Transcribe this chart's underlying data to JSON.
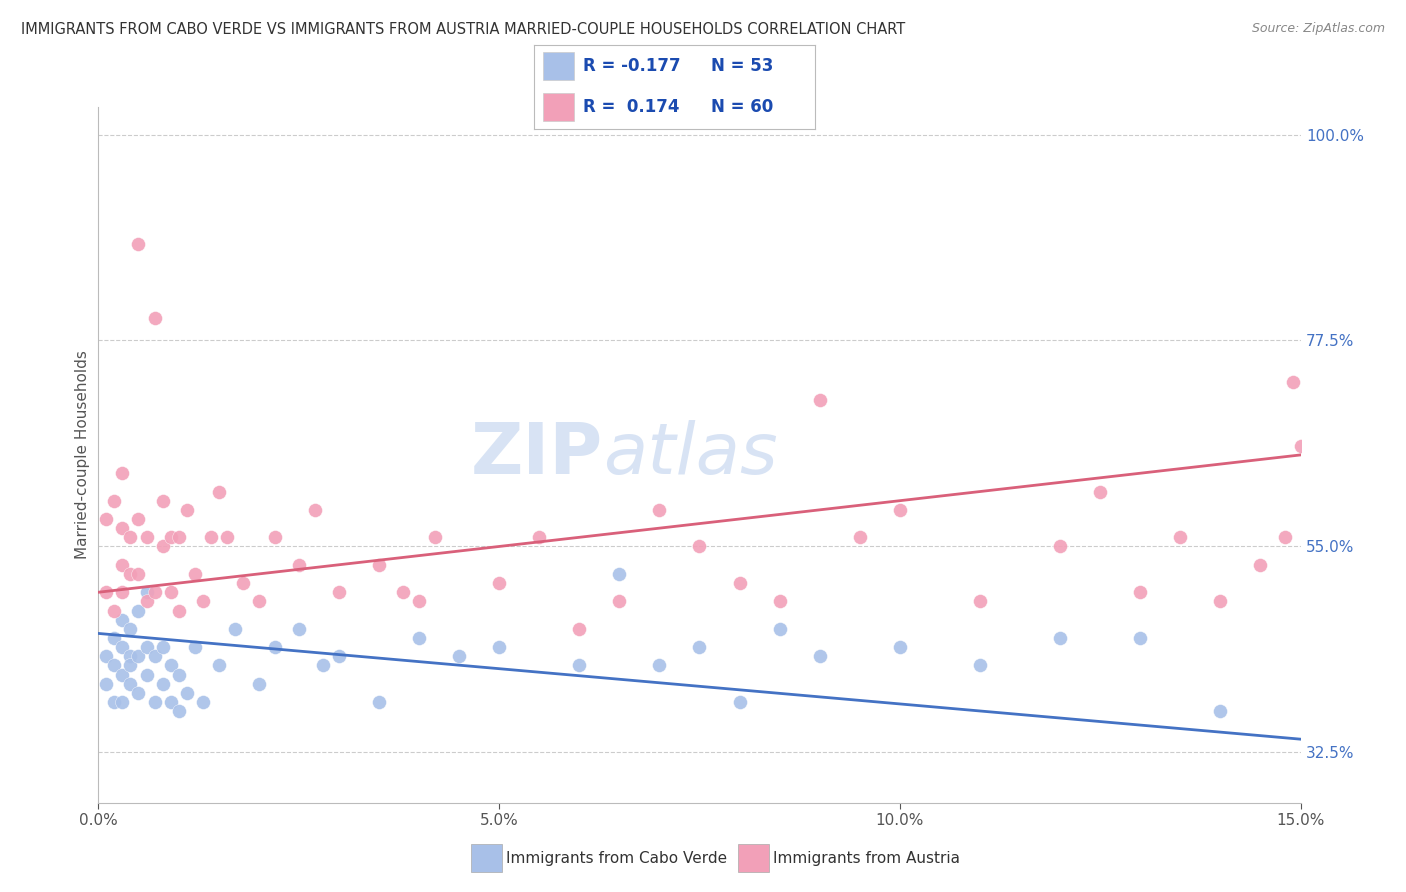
{
  "title": "IMMIGRANTS FROM CABO VERDE VS IMMIGRANTS FROM AUSTRIA MARRIED-COUPLE HOUSEHOLDS CORRELATION CHART",
  "source": "Source: ZipAtlas.com",
  "ylabel": "Married-couple Households",
  "legend_label_blue": "Immigrants from Cabo Verde",
  "legend_label_pink": "Immigrants from Austria",
  "R_blue": -0.177,
  "N_blue": 53,
  "R_pink": 0.174,
  "N_pink": 60,
  "color_blue": "#A8C0E8",
  "color_pink": "#F2A0B8",
  "trendline_blue": "#4472C4",
  "trendline_pink": "#D9607A",
  "xmin": 0.0,
  "xmax": 0.15,
  "ymin": 0.27,
  "ymax": 1.03,
  "yticks": [
    0.325,
    0.55,
    0.775,
    1.0
  ],
  "ytick_labels": [
    "32.5%",
    "55.0%",
    "77.5%",
    "100.0%"
  ],
  "xticks": [
    0.0,
    0.05,
    0.1,
    0.15
  ],
  "xtick_labels": [
    "0.0%",
    "5.0%",
    "10.0%",
    "15.0%"
  ],
  "watermark": "ZIPatlas",
  "background_color": "#FFFFFF",
  "grid_color": "#CCCCCC",
  "blue_intercept": 0.455,
  "blue_slope": -0.77,
  "pink_intercept": 0.5,
  "pink_slope": 1.0,
  "blue_scatter_x": [
    0.001,
    0.001,
    0.002,
    0.002,
    0.002,
    0.003,
    0.003,
    0.003,
    0.003,
    0.004,
    0.004,
    0.004,
    0.004,
    0.005,
    0.005,
    0.005,
    0.006,
    0.006,
    0.006,
    0.007,
    0.007,
    0.008,
    0.008,
    0.009,
    0.009,
    0.01,
    0.01,
    0.011,
    0.012,
    0.013,
    0.015,
    0.017,
    0.02,
    0.022,
    0.025,
    0.028,
    0.03,
    0.035,
    0.04,
    0.045,
    0.05,
    0.06,
    0.065,
    0.07,
    0.075,
    0.08,
    0.085,
    0.09,
    0.1,
    0.11,
    0.12,
    0.13,
    0.14
  ],
  "blue_scatter_y": [
    0.43,
    0.4,
    0.45,
    0.42,
    0.38,
    0.44,
    0.41,
    0.38,
    0.47,
    0.43,
    0.4,
    0.46,
    0.42,
    0.39,
    0.43,
    0.48,
    0.41,
    0.44,
    0.5,
    0.38,
    0.43,
    0.4,
    0.44,
    0.38,
    0.42,
    0.37,
    0.41,
    0.39,
    0.44,
    0.38,
    0.42,
    0.46,
    0.4,
    0.44,
    0.46,
    0.42,
    0.43,
    0.38,
    0.45,
    0.43,
    0.44,
    0.42,
    0.52,
    0.42,
    0.44,
    0.38,
    0.46,
    0.43,
    0.44,
    0.42,
    0.45,
    0.45,
    0.37
  ],
  "pink_scatter_x": [
    0.001,
    0.001,
    0.002,
    0.002,
    0.003,
    0.003,
    0.003,
    0.003,
    0.004,
    0.004,
    0.005,
    0.005,
    0.005,
    0.006,
    0.006,
    0.007,
    0.007,
    0.008,
    0.008,
    0.009,
    0.009,
    0.01,
    0.01,
    0.011,
    0.012,
    0.013,
    0.014,
    0.015,
    0.016,
    0.018,
    0.02,
    0.022,
    0.025,
    0.027,
    0.03,
    0.035,
    0.038,
    0.04,
    0.042,
    0.05,
    0.055,
    0.06,
    0.065,
    0.07,
    0.075,
    0.08,
    0.085,
    0.09,
    0.095,
    0.1,
    0.11,
    0.12,
    0.125,
    0.13,
    0.135,
    0.14,
    0.145,
    0.148,
    0.149,
    0.15
  ],
  "pink_scatter_y": [
    0.5,
    0.58,
    0.48,
    0.6,
    0.53,
    0.57,
    0.63,
    0.5,
    0.52,
    0.56,
    0.52,
    0.58,
    0.88,
    0.49,
    0.56,
    0.5,
    0.8,
    0.55,
    0.6,
    0.5,
    0.56,
    0.48,
    0.56,
    0.59,
    0.52,
    0.49,
    0.56,
    0.61,
    0.56,
    0.51,
    0.49,
    0.56,
    0.53,
    0.59,
    0.5,
    0.53,
    0.5,
    0.49,
    0.56,
    0.51,
    0.56,
    0.46,
    0.49,
    0.59,
    0.55,
    0.51,
    0.49,
    0.71,
    0.56,
    0.59,
    0.49,
    0.55,
    0.61,
    0.5,
    0.56,
    0.49,
    0.53,
    0.56,
    0.73,
    0.66
  ]
}
